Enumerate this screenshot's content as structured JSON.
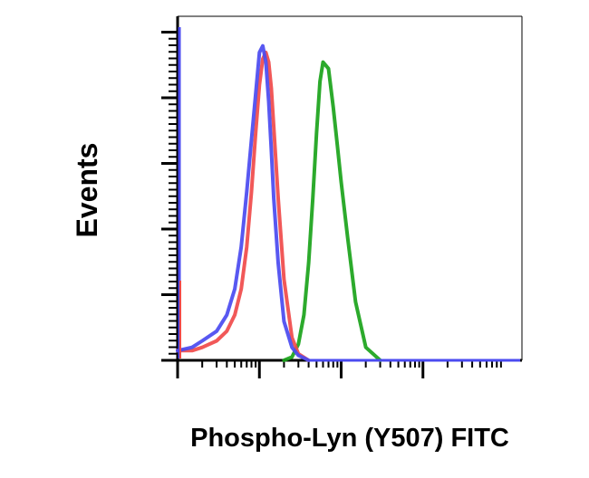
{
  "chart_data": {
    "type": "line",
    "title": "",
    "xlabel": "Phospho-Lyn (Y507) FITC",
    "ylabel": "Events",
    "x_scale": "log",
    "xlim": [
      1,
      10000
    ],
    "ylim": [
      0,
      100
    ],
    "x_tick_labels": [],
    "y_tick_labels": [],
    "legend": "none",
    "grid": false,
    "series": [
      {
        "color": "#4a4af0",
        "x": [
          1,
          1.5,
          2,
          3,
          4,
          5,
          6,
          7,
          8,
          9,
          10,
          11,
          12,
          13,
          14,
          15,
          17,
          20,
          25,
          30,
          40
        ],
        "y": [
          3,
          4,
          6,
          9,
          14,
          22,
          35,
          52,
          68,
          82,
          95,
          97,
          92,
          80,
          65,
          50,
          30,
          12,
          4,
          1.5,
          0
        ]
      },
      {
        "color": "#f04a4a",
        "x": [
          1,
          1.5,
          2,
          3,
          4,
          5,
          6,
          7,
          8,
          9,
          10,
          11,
          12,
          13,
          14,
          15,
          17,
          20,
          25,
          30,
          40
        ],
        "y": [
          3,
          3,
          4,
          6,
          9,
          14,
          22,
          35,
          52,
          70,
          85,
          93,
          95,
          92,
          84,
          72,
          50,
          25,
          7,
          2,
          0
        ]
      },
      {
        "color": "#1aa31a",
        "x": [
          20,
          25,
          30,
          35,
          40,
          45,
          50,
          55,
          60,
          70,
          80,
          90,
          100,
          120,
          150,
          200,
          300
        ],
        "y": [
          0,
          1,
          5,
          14,
          30,
          50,
          70,
          86,
          92,
          90,
          78,
          66,
          55,
          38,
          18,
          4,
          0
        ]
      }
    ]
  }
}
